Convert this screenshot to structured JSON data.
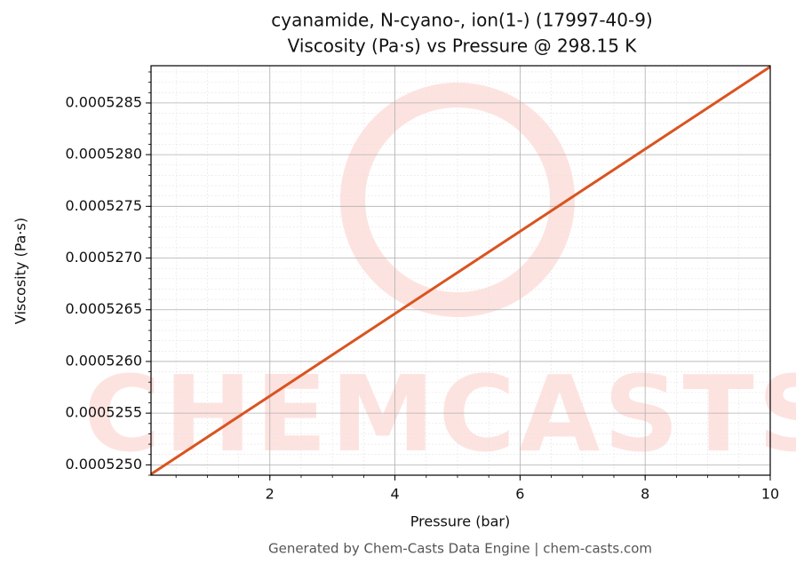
{
  "chart_data": {
    "type": "line",
    "title": "cyanamide, N-cyano-, ion(1-) (17997-40-9)",
    "subtitle": "Viscosity (Pa·s) vs Pressure @ 298.15 K",
    "x_label": "Pressure (bar)",
    "y_label": "Viscosity (Pa·s)",
    "watermark": "CHEMCASTS",
    "footer": "Generated by Chem-Casts Data Engine | chem-casts.com",
    "x": [
      0.1,
      2,
      4,
      6,
      8,
      10
    ],
    "series": [
      {
        "name": "Viscosity",
        "color": "#d95420",
        "values": [
          0.00052491,
          0.000525666,
          0.000526462,
          0.000527258,
          0.000528054,
          0.00052885
        ]
      }
    ],
    "xlim": [
      0.1,
      10
    ],
    "ylim": [
      0.0005249,
      0.00052886
    ],
    "xticks": [
      2,
      4,
      6,
      8,
      10
    ],
    "yticks": [
      {
        "value": 0.000525,
        "label": "0.0005250"
      },
      {
        "value": 0.0005255,
        "label": "0.0005255"
      },
      {
        "value": 0.000526,
        "label": "0.0005260"
      },
      {
        "value": 0.0005265,
        "label": "0.0005265"
      },
      {
        "value": 0.000527,
        "label": "0.0005270"
      },
      {
        "value": 0.0005275,
        "label": "0.0005275"
      },
      {
        "value": 0.000528,
        "label": "0.0005280"
      },
      {
        "value": 0.0005285,
        "label": "0.0005285"
      }
    ],
    "grid": true
  }
}
